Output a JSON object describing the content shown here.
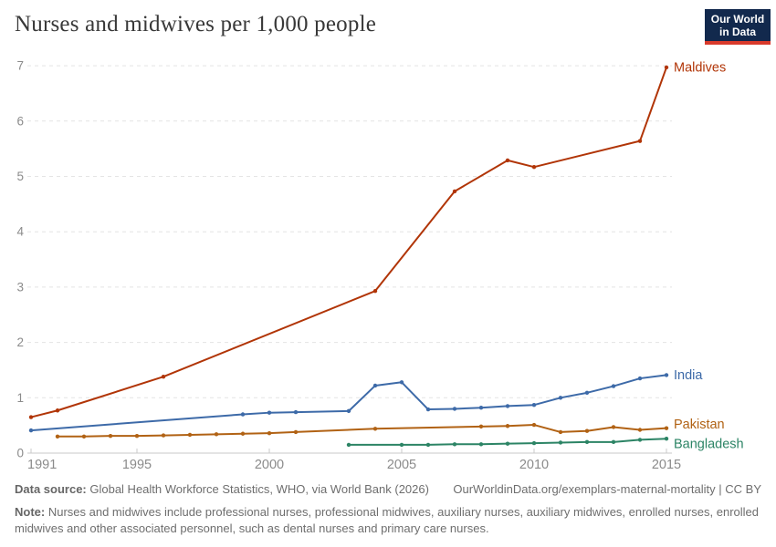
{
  "header": {
    "title": "Nurses and midwives per 1,000 people",
    "logo": {
      "line1": "Our World",
      "line2": "in Data",
      "bg_color": "#12294d",
      "bar_color": "#d93a2b"
    }
  },
  "chart_data": {
    "type": "line",
    "title": "Nurses and midwives per 1,000 people",
    "xlabel": "",
    "ylabel": "",
    "xlim": [
      1991,
      2015
    ],
    "ylim": [
      0,
      7
    ],
    "x_ticks": [
      1991,
      1995,
      2000,
      2005,
      2010,
      2015
    ],
    "y_ticks": [
      0,
      1,
      2,
      3,
      4,
      5,
      6,
      7
    ],
    "grid": "horizontal-dashed",
    "legend_position": "end-of-line-labels",
    "axis_color": "#c8c8c8",
    "grid_color": "#e4e4e4",
    "tick_label_color": "#8b8b8b",
    "series": [
      {
        "name": "Maldives",
        "color": "#b13507",
        "label_dy": 0,
        "points": [
          [
            1991,
            0.65
          ],
          [
            1992,
            0.77
          ],
          [
            1996,
            1.38
          ],
          [
            2004,
            2.93
          ],
          [
            2007,
            4.73
          ],
          [
            2009,
            5.29
          ],
          [
            2010,
            5.17
          ],
          [
            2014,
            5.64
          ],
          [
            2015,
            6.97
          ]
        ]
      },
      {
        "name": "India",
        "color": "#3d6aa8",
        "label_dy": 0,
        "points": [
          [
            1991,
            0.41
          ],
          [
            1999,
            0.7
          ],
          [
            2000,
            0.73
          ],
          [
            2001,
            0.74
          ],
          [
            2003,
            0.76
          ],
          [
            2004,
            1.22
          ],
          [
            2005,
            1.28
          ],
          [
            2006,
            0.79
          ],
          [
            2007,
            0.8
          ],
          [
            2008,
            0.82
          ],
          [
            2009,
            0.85
          ],
          [
            2010,
            0.87
          ],
          [
            2011,
            1.0
          ],
          [
            2012,
            1.09
          ],
          [
            2013,
            1.21
          ],
          [
            2014,
            1.35
          ],
          [
            2015,
            1.41
          ]
        ]
      },
      {
        "name": "Pakistan",
        "color": "#b16214",
        "label_dy": -4,
        "points": [
          [
            1992,
            0.3
          ],
          [
            1993,
            0.3
          ],
          [
            1994,
            0.31
          ],
          [
            1995,
            0.31
          ],
          [
            1996,
            0.32
          ],
          [
            1997,
            0.33
          ],
          [
            1998,
            0.34
          ],
          [
            1999,
            0.35
          ],
          [
            2000,
            0.36
          ],
          [
            2001,
            0.38
          ],
          [
            2004,
            0.44
          ],
          [
            2008,
            0.48
          ],
          [
            2009,
            0.49
          ],
          [
            2010,
            0.51
          ],
          [
            2011,
            0.38
          ],
          [
            2012,
            0.4
          ],
          [
            2013,
            0.47
          ],
          [
            2014,
            0.42
          ],
          [
            2015,
            0.45
          ]
        ]
      },
      {
        "name": "Bangladesh",
        "color": "#2c8465",
        "label_dy": 6,
        "points": [
          [
            2003,
            0.15
          ],
          [
            2005,
            0.15
          ],
          [
            2006,
            0.15
          ],
          [
            2007,
            0.16
          ],
          [
            2008,
            0.16
          ],
          [
            2009,
            0.17
          ],
          [
            2010,
            0.18
          ],
          [
            2011,
            0.19
          ],
          [
            2012,
            0.2
          ],
          [
            2013,
            0.2
          ],
          [
            2014,
            0.24
          ],
          [
            2015,
            0.26
          ]
        ]
      }
    ]
  },
  "footer": {
    "datasource_label": "Data source:",
    "datasource_text": " Global Health Workforce Statistics, WHO, via World Bank (2026)",
    "link_text": "OurWorldinData.org/exemplars-maternal-mortality | CC BY",
    "note_label": "Note:",
    "note_text": " Nurses and midwives include professional nurses, professional midwives, auxiliary nurses, auxiliary midwives, enrolled nurses, enrolled midwives and other associated personnel, such as dental nurses and primary care nurses."
  }
}
